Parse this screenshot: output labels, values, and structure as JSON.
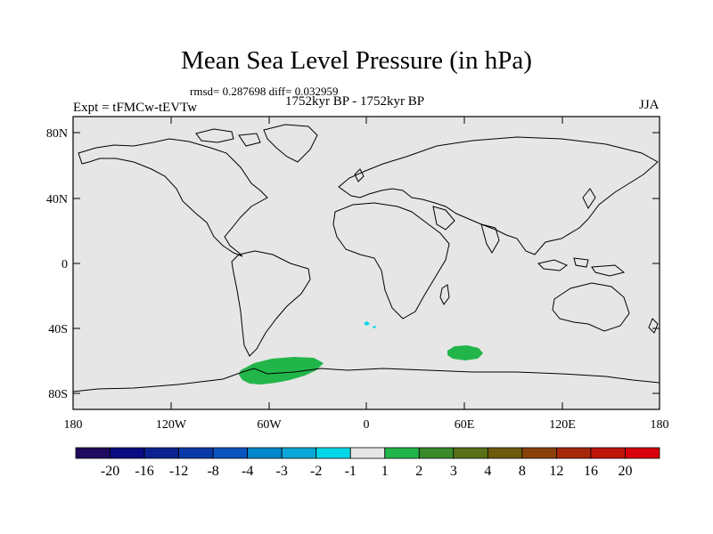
{
  "title": "Mean Sea Level Pressure (in hPa)",
  "stats": "rmsd= 0.287698 diff= 0.032959",
  "period": "1752kyr BP - 1752kyr BP",
  "experiment": "Expt = tFMCw-tEVTw",
  "season": "JJA",
  "map": {
    "lat_ticks": [
      "80N",
      "40N",
      "0",
      "40S",
      "80S"
    ],
    "lon_ticks": [
      "180",
      "120W",
      "60W",
      "0",
      "60E",
      "120E",
      "180"
    ],
    "background_color": "#e6e6e6",
    "anomaly_regions": [
      {
        "label": "weddell-sea-high",
        "bin": "1 to 2",
        "color": "#22b64a"
      },
      {
        "label": "south-indian-ocean-high",
        "bin": "1 to 2",
        "color": "#22b64a"
      },
      {
        "label": "south-atlantic-low",
        "bin": "-2 to -1",
        "color": "#00d7e8"
      }
    ]
  },
  "colorbar": {
    "labels": [
      "-20",
      "-16",
      "-12",
      "-8",
      "-4",
      "-3",
      "-2",
      "-1",
      "1",
      "2",
      "3",
      "4",
      "8",
      "12",
      "16",
      "20"
    ],
    "colors": [
      "#1e0a5e",
      "#0a0a82",
      "#0a2290",
      "#0a3aa8",
      "#0a54c0",
      "#0088cc",
      "#0aa8d8",
      "#00d7e8",
      "#e6e6e6",
      "#22b64a",
      "#3a8a2a",
      "#5a7018",
      "#6e5a0a",
      "#8a420a",
      "#a62a0a",
      "#c0160a",
      "#d8000a"
    ]
  }
}
